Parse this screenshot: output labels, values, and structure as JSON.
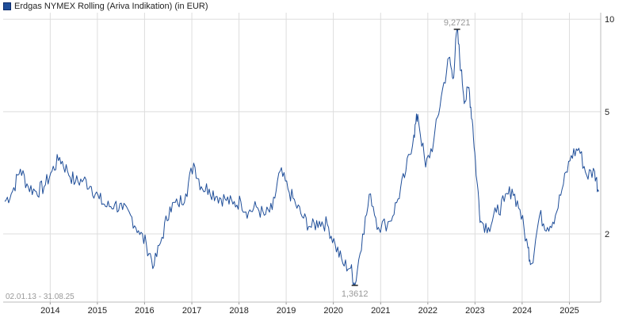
{
  "chart_data": {
    "type": "line",
    "log_scale": true,
    "grid": true,
    "legend_position": "top-left",
    "series": [
      {
        "name": "Erdgas NYMEX Rolling (Ariva Indikation) (in EUR)",
        "color": "#1f4e99",
        "points": [
          [
            "2013-01",
            2.55
          ],
          [
            "2013-03",
            2.75
          ],
          [
            "2013-05",
            3.25
          ],
          [
            "2013-07",
            2.85
          ],
          [
            "2013-09",
            2.75
          ],
          [
            "2013-11",
            2.85
          ],
          [
            "2014-01",
            3.2
          ],
          [
            "2014-03",
            3.55
          ],
          [
            "2014-05",
            3.2
          ],
          [
            "2014-07",
            2.95
          ],
          [
            "2014-09",
            3.0
          ],
          [
            "2014-11",
            2.85
          ],
          [
            "2015-01",
            2.6
          ],
          [
            "2015-03",
            2.45
          ],
          [
            "2015-05",
            2.5
          ],
          [
            "2015-07",
            2.4
          ],
          [
            "2015-09",
            2.3
          ],
          [
            "2015-11",
            2.05
          ],
          [
            "2016-01",
            1.85
          ],
          [
            "2016-03",
            1.58
          ],
          [
            "2016-05",
            1.95
          ],
          [
            "2016-07",
            2.45
          ],
          [
            "2016-09",
            2.5
          ],
          [
            "2016-11",
            2.7
          ],
          [
            "2017-01",
            3.4
          ],
          [
            "2017-03",
            2.85
          ],
          [
            "2017-05",
            2.8
          ],
          [
            "2017-07",
            2.65
          ],
          [
            "2017-09",
            2.6
          ],
          [
            "2017-11",
            2.5
          ],
          [
            "2018-01",
            2.55
          ],
          [
            "2018-03",
            2.35
          ],
          [
            "2018-05",
            2.45
          ],
          [
            "2018-07",
            2.3
          ],
          [
            "2018-09",
            2.4
          ],
          [
            "2018-11",
            3.2
          ],
          [
            "2019-01",
            2.8
          ],
          [
            "2019-03",
            2.5
          ],
          [
            "2019-05",
            2.25
          ],
          [
            "2019-07",
            2.1
          ],
          [
            "2019-09",
            2.2
          ],
          [
            "2019-11",
            2.15
          ],
          [
            "2020-01",
            1.85
          ],
          [
            "2020-03",
            1.6
          ],
          [
            "2020-05",
            1.55
          ],
          [
            "2020-06",
            1.36
          ],
          [
            "2020-08",
            2.0
          ],
          [
            "2020-10",
            2.7
          ],
          [
            "2020-12",
            2.1
          ],
          [
            "2021-03",
            2.2
          ],
          [
            "2021-05",
            2.6
          ],
          [
            "2021-07",
            3.2
          ],
          [
            "2021-09",
            4.2
          ],
          [
            "2021-10",
            4.9
          ],
          [
            "2021-12",
            3.3
          ],
          [
            "2022-02",
            4.0
          ],
          [
            "2022-04",
            5.6
          ],
          [
            "2022-06",
            7.5
          ],
          [
            "2022-07",
            6.4
          ],
          [
            "2022-08",
            9.27
          ],
          [
            "2022-09",
            6.8
          ],
          [
            "2022-10",
            5.4
          ],
          [
            "2022-11",
            6.0
          ],
          [
            "2022-12",
            4.5
          ],
          [
            "2023-01",
            3.0
          ],
          [
            "2023-02",
            2.2
          ],
          [
            "2023-04",
            2.1
          ],
          [
            "2023-06",
            2.35
          ],
          [
            "2023-08",
            2.55
          ],
          [
            "2023-10",
            2.8
          ],
          [
            "2023-12",
            2.4
          ],
          [
            "2024-02",
            1.8
          ],
          [
            "2024-03",
            1.6
          ],
          [
            "2024-05",
            2.3
          ],
          [
            "2024-07",
            2.1
          ],
          [
            "2024-09",
            2.3
          ],
          [
            "2024-11",
            2.9
          ],
          [
            "2025-01",
            3.6
          ],
          [
            "2025-03",
            3.8
          ],
          [
            "2025-05",
            3.1
          ],
          [
            "2025-07",
            3.2
          ],
          [
            "2025-08",
            2.75
          ]
        ]
      }
    ],
    "x_range": [
      "2013-01-02",
      "2025-08-31"
    ],
    "x_tick_labels": [
      "2014",
      "2015",
      "2016",
      "2017",
      "2018",
      "2019",
      "2020",
      "2021",
      "2022",
      "2023",
      "2024",
      "2025"
    ],
    "y_ticks": [
      {
        "value": 2,
        "label": "2"
      },
      {
        "value": 5,
        "label": "5"
      },
      {
        "value": 10,
        "label": "10"
      }
    ],
    "ylim": [
      1.2,
      10.5
    ],
    "annotations": {
      "max": {
        "date": "2022-08",
        "value": 9.27,
        "label": "9,2721"
      },
      "min": {
        "date": "2020-06",
        "value": 1.36,
        "label": "1,3612"
      },
      "date_range": "02.01.13 - 31.08.25"
    }
  }
}
